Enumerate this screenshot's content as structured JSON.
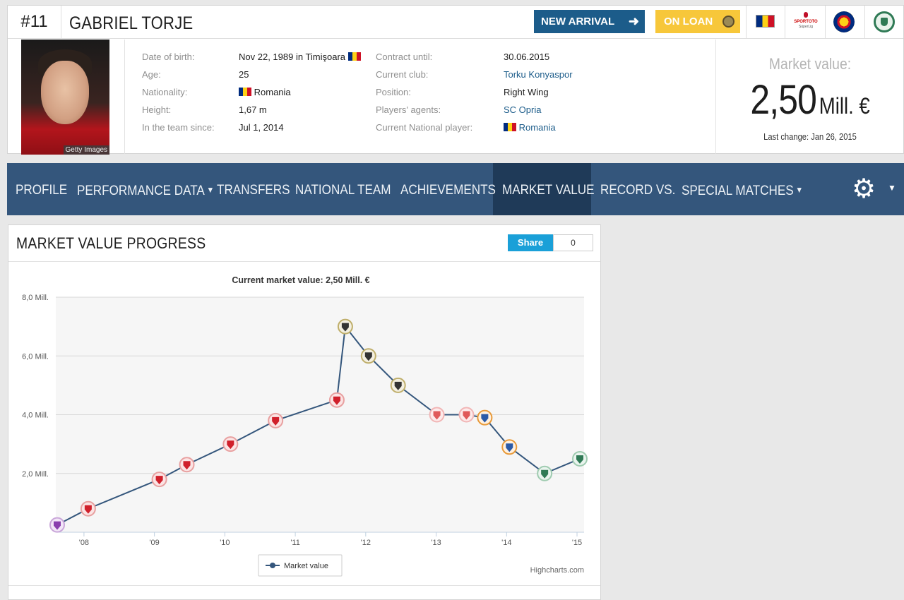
{
  "player": {
    "number": "#11",
    "name": "GABRIEL TORJE",
    "photo_credit": "Getty Images"
  },
  "badges": {
    "new_arrival": "NEW ARRIVAL",
    "on_loan": "ON LOAN"
  },
  "league_logo": {
    "line1": "SPORTOTO",
    "line2": "SüperLig"
  },
  "info_left": [
    {
      "label": "Date of birth:",
      "value": "Nov 22, 1989 in Timişoara",
      "flag": true
    },
    {
      "label": "Age:",
      "value": "25"
    },
    {
      "label": "Nationality:",
      "value": "Romania",
      "flag_before": true
    },
    {
      "label": "Height:",
      "value": "1,67 m"
    },
    {
      "label": "In the team since:",
      "value": "Jul 1, 2014"
    }
  ],
  "info_right": [
    {
      "label": "Contract until:",
      "value": "30.06.2015"
    },
    {
      "label": "Current club:",
      "value": "Torku Konyaspor",
      "link": true
    },
    {
      "label": "Position:",
      "value": "Right Wing"
    },
    {
      "label": "Players' agents:",
      "value": "SC Opria",
      "link": true
    },
    {
      "label": "Current  National player:",
      "value": "Romania",
      "link": true,
      "flag_before": true
    }
  ],
  "market_value": {
    "title": "Market value:",
    "number": "2,50",
    "unit": "Mill. €",
    "last_change": "Last change: Jan 26, 2015"
  },
  "nav": {
    "items": [
      "PROFILE",
      "PERFORMANCE DATA",
      "TRANSFERS",
      "NATIONAL TEAM",
      "ACHIEVEMENTS",
      "MARKET VALUE",
      "RECORD VS.",
      "SPECIAL MATCHES"
    ],
    "active": "MARKET VALUE",
    "settings_icon": "gear-icon"
  },
  "chart_card": {
    "title": "MARKET VALUE PROGRESS",
    "share_label": "Share",
    "share_count": "0",
    "credit": "Highcharts.com"
  },
  "chart_data": {
    "type": "line",
    "title": "Current market value: 2,50 Mill. €",
    "y_ticks": [
      "2,0 Mill.",
      "4,0 Mill.",
      "6,0 Mill.",
      "8,0 Mill."
    ],
    "y_tick_values": [
      2,
      4,
      6,
      8
    ],
    "ylim": [
      0,
      8
    ],
    "x_ticks": [
      "'08",
      "'09",
      "'10",
      "'11",
      "'12",
      "'13",
      "'14",
      "'15"
    ],
    "x_tick_values": [
      2008.0,
      2009.0,
      2010.0,
      2011.0,
      2012.0,
      2013.0,
      2014.0,
      2015.0
    ],
    "xlim": [
      2007.6,
      2015.1
    ],
    "grid": true,
    "legend": "bottom-center",
    "series": [
      {
        "name": "Market value",
        "color": "#34567c",
        "points": [
          {
            "x": 2007.62,
            "y": 0.25,
            "club": "purple"
          },
          {
            "x": 2008.06,
            "y": 0.8,
            "club": "red"
          },
          {
            "x": 2009.07,
            "y": 1.8,
            "club": "red"
          },
          {
            "x": 2009.46,
            "y": 2.3,
            "club": "red"
          },
          {
            "x": 2010.08,
            "y": 3.0,
            "club": "red"
          },
          {
            "x": 2010.72,
            "y": 3.8,
            "club": "red"
          },
          {
            "x": 2011.59,
            "y": 4.5,
            "club": "red"
          },
          {
            "x": 2011.71,
            "y": 7.0,
            "club": "udinese"
          },
          {
            "x": 2012.04,
            "y": 6.0,
            "club": "udinese"
          },
          {
            "x": 2012.46,
            "y": 5.0,
            "club": "udinese"
          },
          {
            "x": 2013.01,
            "y": 4.0,
            "club": "granada"
          },
          {
            "x": 2013.43,
            "y": 4.0,
            "club": "granada"
          },
          {
            "x": 2013.69,
            "y": 3.9,
            "club": "espanyol"
          },
          {
            "x": 2014.04,
            "y": 2.9,
            "club": "espanyol"
          },
          {
            "x": 2014.54,
            "y": 2.0,
            "club": "konyaspor"
          },
          {
            "x": 2015.04,
            "y": 2.5,
            "club": "konyaspor"
          }
        ]
      }
    ]
  }
}
